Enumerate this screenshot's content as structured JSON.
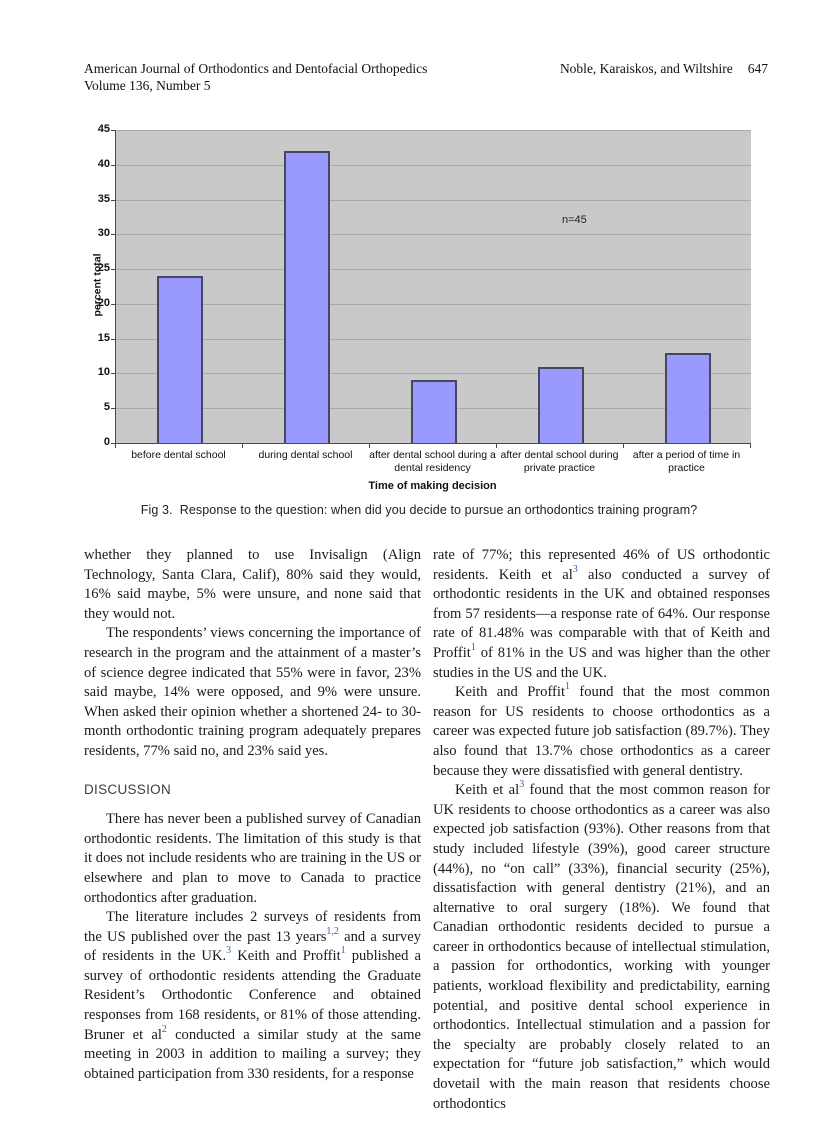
{
  "header": {
    "journal_name": "American Journal of Orthodontics and Dentofacial Orthopedics",
    "volume_line": "Volume 136, Number 5",
    "authors": "Noble, Karaiskos, and Wiltshire",
    "page_number": "647"
  },
  "chart_data": {
    "type": "bar",
    "title": "",
    "categories": [
      "before dental school",
      "during dental school",
      "after dental school during a dental residency",
      "after dental school during private practice",
      "after a period of time in practice"
    ],
    "category_label_lines": [
      [
        "before dental school"
      ],
      [
        "during dental school"
      ],
      [
        "after dental school during a",
        "dental residency"
      ],
      [
        "after dental school during",
        "private practice"
      ],
      [
        "after a period of time in",
        "practice"
      ]
    ],
    "values": [
      24,
      42,
      9,
      11,
      13
    ],
    "xlabel": "Time of making decision",
    "ylabel": "percent total",
    "annotation": "n=45",
    "ylim": [
      0,
      45
    ],
    "ytick_step": 5,
    "grid": "horizontal",
    "legend_position": "none",
    "colors": {
      "bar_fill": "#9a99fd",
      "bar_border": "#46465e",
      "plot_background": "#c9c9c9",
      "gridline": "#a9a9a9",
      "axis": "#4a4a4a"
    }
  },
  "figure_caption": "Fig 3.  Response to the question: when did you decide to pursue an orthodontics training program?",
  "article": {
    "discussion_heading": "DISCUSSION",
    "left_column_before_heading": [
      {
        "indent": false,
        "segments": [
          {
            "text": "whether they planned to use Invisalign (Align Technology, Santa Clara, Calif), 80% said they would, 16% said maybe, 5% were unsure, and none said that they would not."
          }
        ]
      },
      {
        "indent": true,
        "segments": [
          {
            "text": "The respondents’ views concerning the importance of research in the program and the attainment of a master’s of science degree indicated that 55% were in favor, 23% said maybe, 14% were opposed, and 9% were unsure. When asked their opinion whether a shortened 24- to 30-month orthodontic training program adequately prepares residents, 77% said no, and 23% said yes."
          }
        ]
      }
    ],
    "left_column_after_heading": [
      {
        "indent": true,
        "segments": [
          {
            "text": "There has never been a published survey of Canadian orthodontic residents. The limitation of this study is that it does not include residents who are training in the US or elsewhere and plan to move to Canada to practice orthodontics after graduation."
          }
        ]
      },
      {
        "indent": true,
        "segments": [
          {
            "text": "The literature includes 2 surveys of residents from the US published over the past 13 years"
          },
          {
            "sup": "1,2"
          },
          {
            "text": " and a survey of residents in the UK."
          },
          {
            "sup": "3"
          },
          {
            "text": " Keith and Proffit"
          },
          {
            "sup": "1"
          },
          {
            "text": " published a survey of orthodontic residents attending the Graduate Resident’s Orthodontic Conference and obtained responses from 168 residents, or 81% of those attending. Bruner et al"
          },
          {
            "sup": "2"
          },
          {
            "text": " conducted a similar study at the same meeting in 2003 in addition to mailing a survey; they obtained participation from 330 residents, for a response"
          }
        ]
      }
    ],
    "right_column": [
      {
        "indent": false,
        "segments": [
          {
            "text": "rate of 77%; this represented 46% of US orthodontic residents. Keith et al"
          },
          {
            "sup": "3"
          },
          {
            "text": " also conducted a survey of orthodontic residents in the UK and obtained responses from 57 residents—a response rate of 64%. Our response rate of 81.48% was comparable with that of Keith and Proffit"
          },
          {
            "sup": "1"
          },
          {
            "text": " of 81% in the US and was higher than the other studies in the US and the UK."
          }
        ]
      },
      {
        "indent": true,
        "segments": [
          {
            "text": "Keith and Proffit"
          },
          {
            "sup": "1"
          },
          {
            "text": " found that the most common reason for US residents to choose orthodontics as a career was expected future job satisfaction (89.7%). They also found that 13.7% chose orthodontics as a career because they were dissatisfied with general dentistry."
          }
        ]
      },
      {
        "indent": true,
        "segments": [
          {
            "text": "Keith et al"
          },
          {
            "sup": "3"
          },
          {
            "text": " found that the most common reason for UK residents to choose orthodontics as a career was also expected job satisfaction (93%). Other reasons from that study included lifestyle (39%), good career structure (44%), no “on call” (33%), financial security (25%), dissatisfaction with general dentistry (21%), and an alternative to oral surgery (18%). We found that Canadian orthodontic residents decided to pursue a career in orthodontics because of intellectual stimulation, a passion for orthodontics, working with younger patients, workload flexibility and predictability, earning potential, and positive dental school experience in orthodontics. Intellectual stimulation and a passion for the specialty are probably closely related to an expectation for “future job satisfaction,” which would dovetail with the main reason that residents choose orthodontics"
          }
        ]
      }
    ]
  }
}
